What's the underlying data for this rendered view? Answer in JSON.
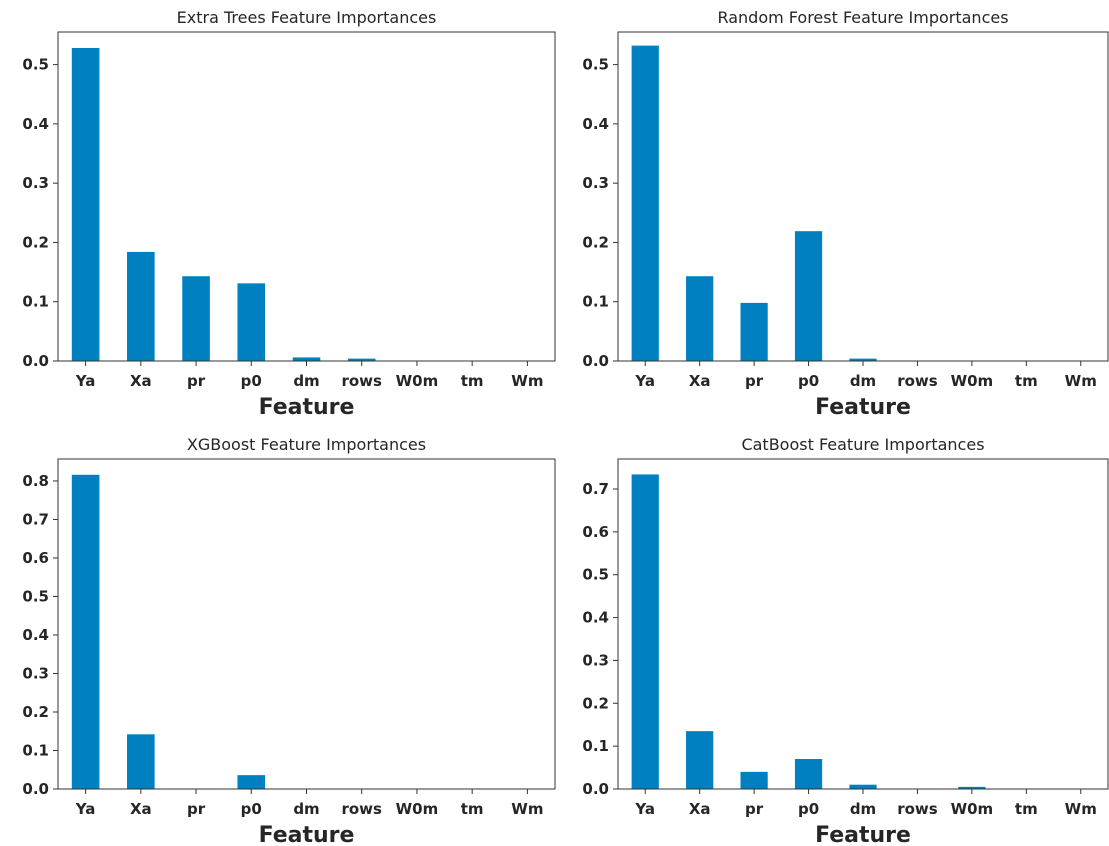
{
  "chart_data": [
    {
      "type": "bar",
      "title": "Extra Trees Feature Importances",
      "xlabel": "Feature",
      "ylabel": "",
      "categories": [
        "Ya",
        "Xa",
        "pr",
        "p0",
        "dm",
        "rows",
        "W0m",
        "tm",
        "Wm"
      ],
      "values": [
        0.528,
        0.184,
        0.143,
        0.131,
        0.006,
        0.004,
        0.0,
        0.0,
        0.0
      ],
      "ylim": [
        0,
        0.555
      ],
      "yticks": [
        "0.0",
        "0.1",
        "0.2",
        "0.3",
        "0.4",
        "0.5"
      ],
      "color": "#0080c0",
      "grid": false
    },
    {
      "type": "bar",
      "title": "Random Forest Feature Importances",
      "xlabel": "Feature",
      "ylabel": "",
      "categories": [
        "Ya",
        "Xa",
        "pr",
        "p0",
        "dm",
        "rows",
        "W0m",
        "tm",
        "Wm"
      ],
      "values": [
        0.532,
        0.143,
        0.098,
        0.219,
        0.004,
        0.0,
        0.0,
        0.0,
        0.0
      ],
      "ylim": [
        0,
        0.555
      ],
      "yticks": [
        "0.0",
        "0.1",
        "0.2",
        "0.3",
        "0.4",
        "0.5"
      ],
      "color": "#0080c0",
      "grid": false
    },
    {
      "type": "bar",
      "title": "XGBoost Feature Importances",
      "xlabel": "Feature",
      "ylabel": "",
      "categories": [
        "Ya",
        "Xa",
        "pr",
        "p0",
        "dm",
        "rows",
        "W0m",
        "tm",
        "Wm"
      ],
      "values": [
        0.816,
        0.142,
        0.0,
        0.036,
        0.0,
        0.0,
        0.0,
        0.0,
        0.0
      ],
      "ylim": [
        0,
        0.857
      ],
      "yticks": [
        "0.0",
        "0.1",
        "0.2",
        "0.3",
        "0.4",
        "0.5",
        "0.6",
        "0.7",
        "0.8"
      ],
      "color": "#0080c0",
      "grid": false
    },
    {
      "type": "bar",
      "title": "CatBoost Feature Importances",
      "xlabel": "Feature",
      "ylabel": "",
      "categories": [
        "Ya",
        "Xa",
        "pr",
        "p0",
        "dm",
        "rows",
        "W0m",
        "tm",
        "Wm"
      ],
      "values": [
        0.734,
        0.135,
        0.04,
        0.07,
        0.01,
        0.0,
        0.005,
        0.0,
        0.0
      ],
      "ylim": [
        0,
        0.77
      ],
      "yticks": [
        "0.0",
        "0.1",
        "0.2",
        "0.3",
        "0.4",
        "0.5",
        "0.6",
        "0.7"
      ],
      "color": "#0080c0",
      "grid": false
    }
  ]
}
